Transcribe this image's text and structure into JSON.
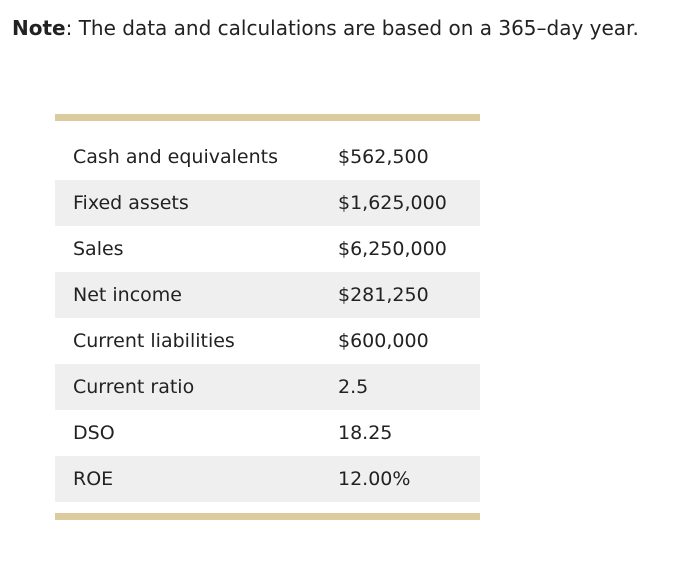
{
  "note": {
    "label": "Note",
    "text": ": The data and calculations are based on a 365–day year."
  },
  "table": {
    "rows": [
      [
        "Cash and equivalents",
        "$562,500"
      ],
      [
        "Fixed assets",
        "$1,625,000"
      ],
      [
        "Sales",
        "$6,250,000"
      ],
      [
        "Net income",
        "$281,250"
      ],
      [
        "Current liabilities",
        "$600,000"
      ],
      [
        "Current ratio",
        "2.5"
      ],
      [
        "DSO",
        "18.25"
      ],
      [
        "ROE",
        "12.00%"
      ]
    ]
  }
}
